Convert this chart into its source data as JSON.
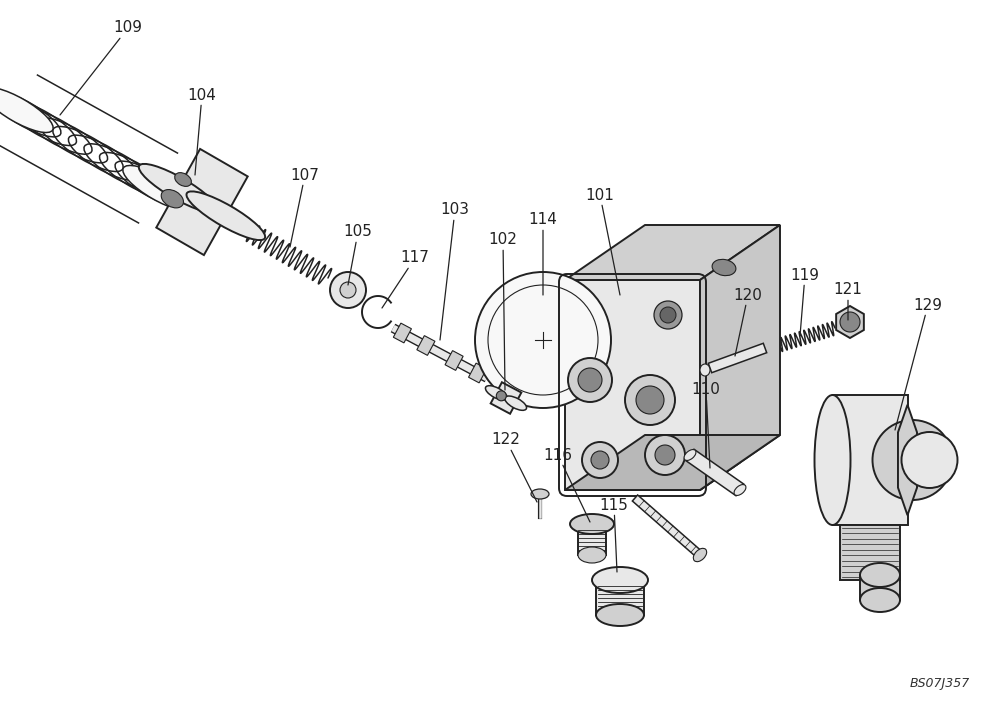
{
  "bg_color": "#ffffff",
  "line_color": "#222222",
  "label_color": "#222222",
  "watermark": "BS07J357",
  "fig_width": 10.0,
  "fig_height": 7.04,
  "dpi": 100,
  "lw_thick": 1.4,
  "lw_med": 1.1,
  "lw_thin": 0.8,
  "fc_light": "#e8e8e8",
  "fc_mid": "#d0d0d0",
  "fc_dark": "#b0b0b0",
  "fc_white": "#f8f8f8"
}
